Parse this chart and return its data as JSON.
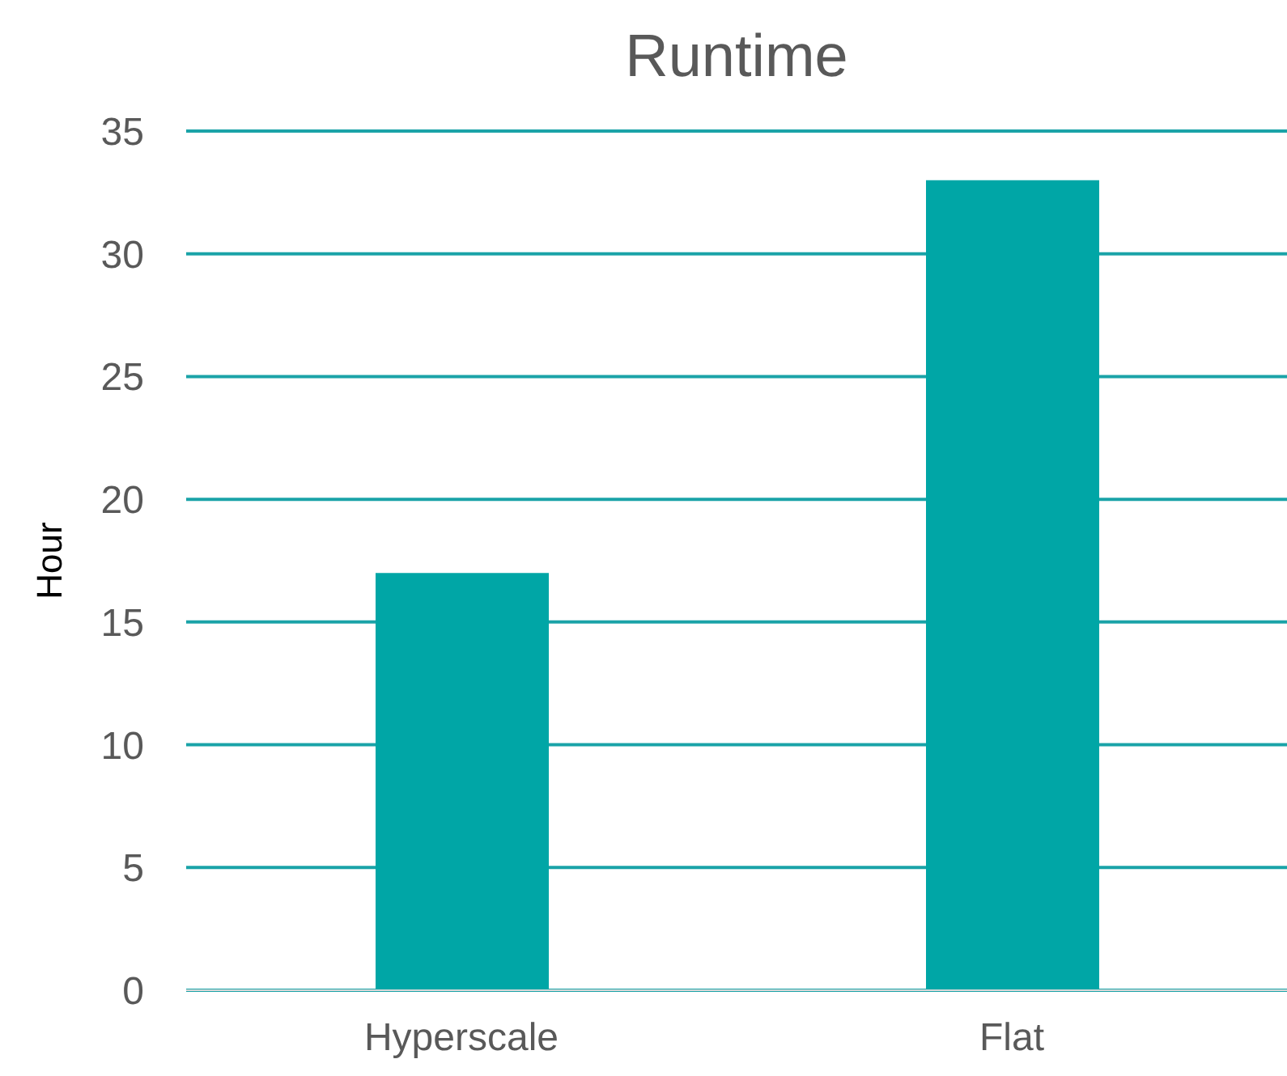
{
  "chart_data": {
    "type": "bar",
    "title": "Runtime",
    "ylabel": "Hour",
    "categories": [
      "Hyperscale",
      "Flat"
    ],
    "values": [
      17,
      33
    ],
    "color": "#00a6a6",
    "ylim": [
      0,
      35
    ],
    "yticks": [
      0,
      5,
      10,
      15,
      20,
      25,
      30,
      35
    ],
    "grid": "y",
    "legend": false
  }
}
